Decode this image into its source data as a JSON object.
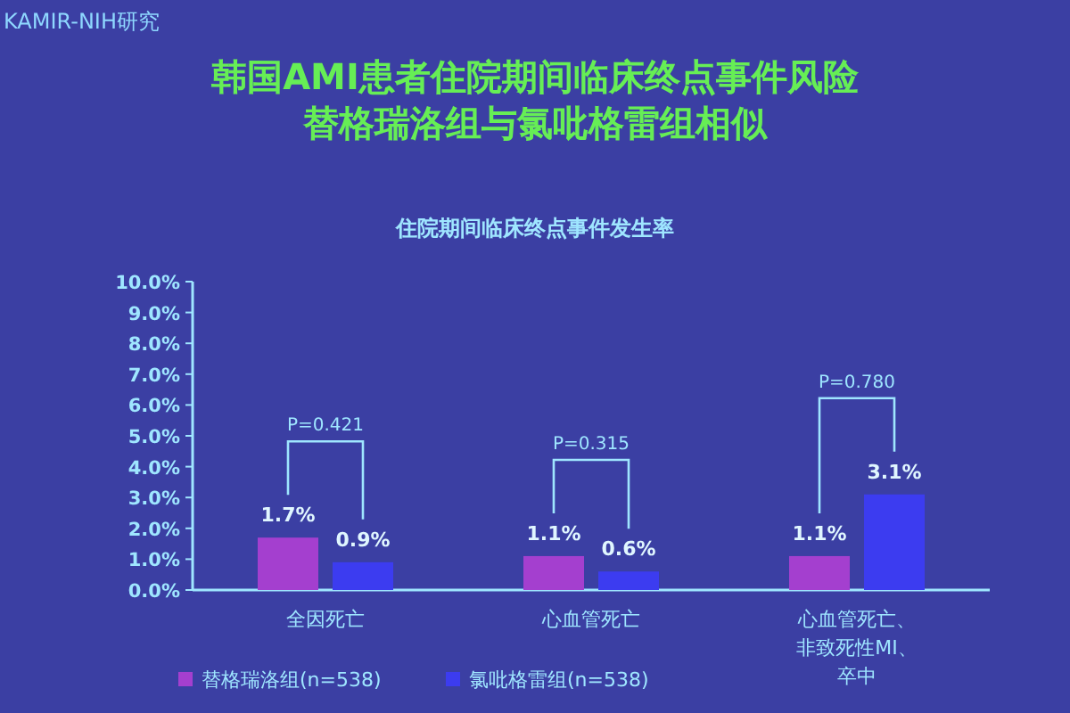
{
  "chart_data": {
    "type": "bar",
    "title": "韩国AMI患者住院期间临床终点事件风险替格瑞洛组与氯吡格雷组相似",
    "subtitle": "住院期间临床终点事件发生率",
    "categories": [
      "全因死亡",
      "心血管死亡",
      "心血管死亡、非致死性MI、卒中"
    ],
    "series": [
      {
        "name": "替格瑞洛组(n=538)",
        "color": "#a43fcf",
        "values": [
          1.7,
          1.1,
          1.1
        ],
        "value_labels": [
          "1.7%",
          "1.1%",
          "1.1%"
        ]
      },
      {
        "name": "氯吡格雷组(n=538)",
        "color": "#3c3cf0",
        "values": [
          0.9,
          0.6,
          3.1
        ],
        "value_labels": [
          "0.9%",
          "0.6%",
          "3.1%"
        ]
      }
    ],
    "ylim": [
      0,
      10
    ],
    "yticks": [
      {
        "value": 0,
        "label": "0.0%"
      },
      {
        "value": 1,
        "label": "1.0%"
      },
      {
        "value": 2,
        "label": "2.0%"
      },
      {
        "value": 3,
        "label": "3.0%"
      },
      {
        "value": 4,
        "label": "4.0%"
      },
      {
        "value": 5,
        "label": "5.0%"
      },
      {
        "value": 6,
        "label": "6.0%"
      },
      {
        "value": 7,
        "label": "7.0%"
      },
      {
        "value": 8,
        "label": "8.0%"
      },
      {
        "value": 9,
        "label": "9.0%"
      },
      {
        "value": 10,
        "label": "10.0%"
      }
    ],
    "legend": "bottom",
    "annotations": [
      "KAMIR-NIH研究",
      "P=0.421",
      "P=0.315",
      "P=0.780"
    ]
  }
}
